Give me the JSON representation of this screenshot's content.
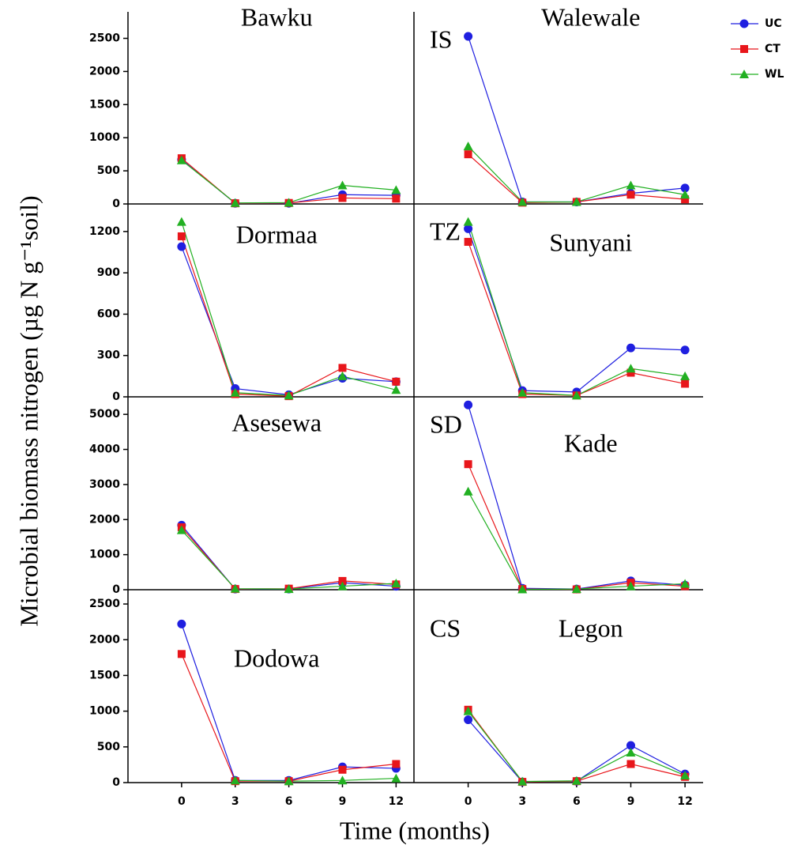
{
  "chart_data": [
    {
      "type": "line",
      "title": "Bawku",
      "x": [
        0,
        3,
        6,
        9,
        12
      ],
      "xlim": [
        -3,
        13
      ],
      "ylim": [
        0,
        2900
      ],
      "yticks": [
        0,
        500,
        1000,
        1500,
        2000,
        2500
      ],
      "series": [
        {
          "name": "UC",
          "color": "#1f1fe0",
          "values": [
            670,
            10,
            10,
            140,
            130
          ]
        },
        {
          "name": "CT",
          "color": "#e8161b",
          "values": [
            690,
            10,
            15,
            90,
            80
          ]
        },
        {
          "name": "WL",
          "color": "#22b022",
          "values": [
            660,
            15,
            20,
            280,
            210
          ]
        }
      ]
    },
    {
      "type": "line",
      "title": "Walewale",
      "zone": "IS",
      "x": [
        0,
        3,
        6,
        9,
        12
      ],
      "xlim": [
        -3,
        13
      ],
      "ylim": [
        0,
        2900
      ],
      "series": [
        {
          "name": "UC",
          "color": "#1f1fe0",
          "values": [
            2530,
            30,
            30,
            160,
            240
          ]
        },
        {
          "name": "CT",
          "color": "#e8161b",
          "values": [
            750,
            20,
            30,
            140,
            70
          ]
        },
        {
          "name": "WL",
          "color": "#22b022",
          "values": [
            870,
            30,
            30,
            280,
            140
          ]
        }
      ]
    },
    {
      "type": "line",
      "title": "Dormaa",
      "x": [
        0,
        3,
        6,
        9,
        12
      ],
      "xlim": [
        -3,
        13
      ],
      "ylim": [
        0,
        1400
      ],
      "yticks": [
        0,
        300,
        600,
        900,
        1200
      ],
      "series": [
        {
          "name": "UC",
          "color": "#1f1fe0",
          "values": [
            1090,
            60,
            15,
            135,
            110
          ]
        },
        {
          "name": "CT",
          "color": "#e8161b",
          "values": [
            1165,
            20,
            5,
            210,
            110
          ]
        },
        {
          "name": "WL",
          "color": "#22b022",
          "values": [
            1270,
            30,
            10,
            150,
            50
          ]
        }
      ]
    },
    {
      "type": "line",
      "title": "Sunyani",
      "zone": "TZ",
      "x": [
        0,
        3,
        6,
        9,
        12
      ],
      "xlim": [
        -3,
        13
      ],
      "ylim": [
        0,
        1400
      ],
      "series": [
        {
          "name": "UC",
          "color": "#1f1fe0",
          "values": [
            1220,
            45,
            35,
            355,
            340
          ]
        },
        {
          "name": "CT",
          "color": "#e8161b",
          "values": [
            1125,
            20,
            10,
            175,
            95
          ]
        },
        {
          "name": "WL",
          "color": "#22b022",
          "values": [
            1270,
            30,
            10,
            205,
            150
          ]
        }
      ]
    },
    {
      "type": "line",
      "title": "Asesewa",
      "x": [
        0,
        3,
        6,
        9,
        12
      ],
      "xlim": [
        -3,
        13
      ],
      "ylim": [
        0,
        5500
      ],
      "yticks": [
        0,
        1000,
        2000,
        3000,
        4000,
        5000
      ],
      "series": [
        {
          "name": "UC",
          "color": "#1f1fe0",
          "values": [
            1840,
            20,
            20,
            200,
            100
          ]
        },
        {
          "name": "CT",
          "color": "#e8161b",
          "values": [
            1780,
            20,
            30,
            250,
            150
          ]
        },
        {
          "name": "WL",
          "color": "#22b022",
          "values": [
            1700,
            30,
            20,
            100,
            180
          ]
        }
      ]
    },
    {
      "type": "line",
      "title": "Kade",
      "zone": "SD",
      "x": [
        0,
        3,
        6,
        9,
        12
      ],
      "xlim": [
        -3,
        13
      ],
      "ylim": [
        0,
        5500
      ],
      "series": [
        {
          "name": "UC",
          "color": "#1f1fe0",
          "values": [
            5270,
            40,
            20,
            250,
            130
          ]
        },
        {
          "name": "CT",
          "color": "#e8161b",
          "values": [
            3580,
            20,
            10,
            200,
            100
          ]
        },
        {
          "name": "WL",
          "color": "#22b022",
          "values": [
            2800,
            10,
            20,
            100,
            170
          ]
        }
      ]
    },
    {
      "type": "line",
      "title": "Dodowa",
      "x": [
        0,
        3,
        6,
        9,
        12
      ],
      "xlim": [
        -3,
        13
      ],
      "ylim": [
        0,
        2700
      ],
      "yticks": [
        0,
        500,
        1000,
        1500,
        2000,
        2500
      ],
      "xticks": [
        0,
        3,
        6,
        9,
        12
      ],
      "series": [
        {
          "name": "UC",
          "color": "#1f1fe0",
          "values": [
            2220,
            30,
            30,
            220,
            200
          ]
        },
        {
          "name": "CT",
          "color": "#e8161b",
          "values": [
            1800,
            20,
            20,
            180,
            260
          ]
        },
        {
          "name": "WL",
          "color": "#22b022",
          "values": [
            null,
            30,
            20,
            30,
            60
          ]
        }
      ]
    },
    {
      "type": "line",
      "title": "Legon",
      "zone": "CS",
      "x": [
        0,
        3,
        6,
        9,
        12
      ],
      "xlim": [
        -3,
        13
      ],
      "ylim": [
        0,
        2700
      ],
      "xticks": [
        0,
        3,
        6,
        9,
        12
      ],
      "series": [
        {
          "name": "UC",
          "color": "#1f1fe0",
          "values": [
            880,
            10,
            20,
            520,
            120
          ]
        },
        {
          "name": "CT",
          "color": "#e8161b",
          "values": [
            1020,
            10,
            20,
            260,
            80
          ]
        },
        {
          "name": "WL",
          "color": "#22b022",
          "values": [
            1000,
            15,
            25,
            420,
            100
          ]
        }
      ]
    }
  ],
  "y_label": "Microbial biomass nitrogen (µg N g⁻¹soil)",
  "x_label": "Time (months)"
}
